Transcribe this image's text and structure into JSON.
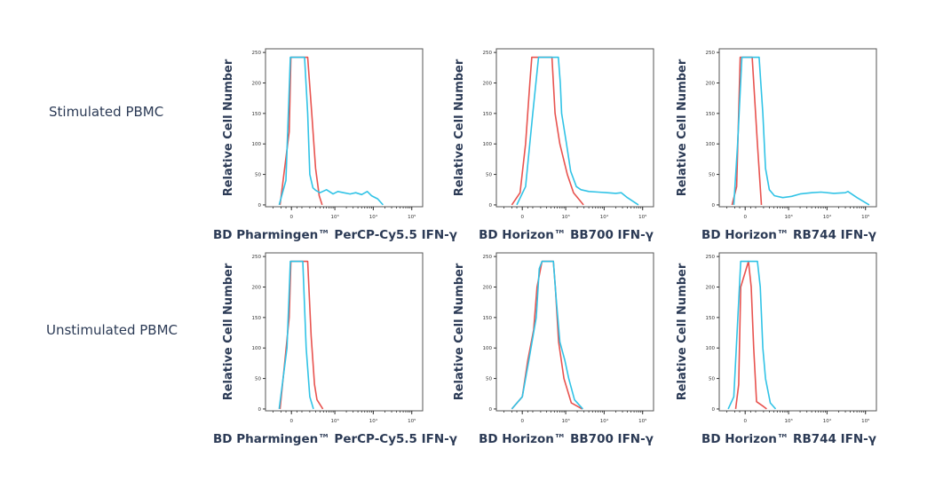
{
  "row_labels": [
    "Stimulated PBMC",
    "Unstimulated PBMC"
  ],
  "colors": {
    "red_series": "#e8534f",
    "blue_series": "#31c3e6",
    "text": "#2b3a55",
    "frame": "#555555"
  },
  "chart_data": [
    {
      "type": "line",
      "row": 0,
      "col": 0,
      "xlabel": "BD Pharmingen™ PerCP-Cy5.5 IFN-γ",
      "ylabel": "Relative Cell Number",
      "xscale": "biexponential",
      "xticks": [
        "0",
        "10³",
        "10⁴",
        "10⁵"
      ],
      "xtick_values": [
        0,
        1000,
        10000,
        100000
      ],
      "yticks": [
        "0",
        "50",
        "100",
        "150",
        "200",
        "250"
      ],
      "ytick_values": [
        0,
        50,
        100,
        150,
        200,
        250
      ],
      "ylim": [
        -3,
        256
      ],
      "grid": false,
      "series": [
        {
          "color": "#e8534f",
          "points": [
            [
              -110,
              0
            ],
            [
              -20,
              120
            ],
            [
              -5,
              242
            ],
            [
              170,
              242
            ],
            [
              230,
              150
            ],
            [
              300,
              60
            ],
            [
              380,
              15
            ],
            [
              460,
              0
            ]
          ]
        },
        {
          "color": "#31c3e6",
          "points": [
            [
              -120,
              0
            ],
            [
              -50,
              40
            ],
            [
              -10,
              242
            ],
            [
              130,
              242
            ],
            [
              170,
              150
            ],
            [
              200,
              50
            ],
            [
              250,
              28
            ],
            [
              300,
              24
            ],
            [
              400,
              20
            ],
            [
              600,
              25
            ],
            [
              900,
              18
            ],
            [
              1200,
              22
            ],
            [
              1700,
              20
            ],
            [
              2500,
              18
            ],
            [
              3500,
              20
            ],
            [
              5000,
              17
            ],
            [
              7000,
              22
            ],
            [
              9000,
              15
            ],
            [
              13000,
              10
            ],
            [
              18000,
              0
            ]
          ]
        }
      ]
    },
    {
      "type": "line",
      "row": 0,
      "col": 1,
      "xlabel": "BD Horizon™ BB700 IFN-γ",
      "ylabel": "Relative Cell Number",
      "xscale": "biexponential",
      "xticks": [
        "0",
        "10³",
        "10⁴",
        "10⁵"
      ],
      "xtick_values": [
        0,
        1000,
        10000,
        100000
      ],
      "yticks": [
        "0",
        "50",
        "100",
        "150",
        "200",
        "250"
      ],
      "ytick_values": [
        0,
        50,
        100,
        150,
        200,
        250
      ],
      "ylim": [
        -3,
        256
      ],
      "grid": false,
      "series": [
        {
          "color": "#e8534f",
          "points": [
            [
              -100,
              0
            ],
            [
              -20,
              20
            ],
            [
              30,
              100
            ],
            [
              70,
              200
            ],
            [
              90,
              242
            ],
            [
              430,
              242
            ],
            [
              520,
              150
            ],
            [
              700,
              100
            ],
            [
              1100,
              50
            ],
            [
              1600,
              20
            ],
            [
              2900,
              0
            ]
          ]
        },
        {
          "color": "#31c3e6",
          "points": [
            [
              -50,
              0
            ],
            [
              30,
              30
            ],
            [
              100,
              150
            ],
            [
              170,
              242
            ],
            [
              640,
              242
            ],
            [
              720,
              200
            ],
            [
              780,
              150
            ],
            [
              1050,
              100
            ],
            [
              1350,
              55
            ],
            [
              1900,
              30
            ],
            [
              2500,
              25
            ],
            [
              4000,
              22
            ],
            [
              7000,
              21
            ],
            [
              12000,
              20
            ],
            [
              20000,
              19
            ],
            [
              28000,
              20
            ],
            [
              40000,
              12
            ],
            [
              78000,
              0
            ]
          ]
        }
      ]
    },
    {
      "type": "line",
      "row": 0,
      "col": 2,
      "xlabel": "BD Horizon™ RB744 IFN-γ",
      "ylabel": "Relative Cell Number",
      "xscale": "biexponential",
      "xticks": [
        "0",
        "10³",
        "10⁴",
        "10⁵"
      ],
      "xtick_values": [
        0,
        1000,
        10000,
        100000
      ],
      "yticks": [
        "0",
        "50",
        "100",
        "150",
        "200",
        "250"
      ],
      "ytick_values": [
        0,
        50,
        100,
        150,
        200,
        250
      ],
      "ylim": [
        -3,
        256
      ],
      "grid": false,
      "series": [
        {
          "color": "#e8534f",
          "points": [
            [
              -130,
              0
            ],
            [
              -80,
              30
            ],
            [
              -45,
              242
            ],
            [
              65,
              242
            ],
            [
              120,
              100
            ],
            [
              170,
              0
            ]
          ]
        },
        {
          "color": "#31c3e6",
          "points": [
            [
              -110,
              0
            ],
            [
              -70,
              100
            ],
            [
              -30,
              242
            ],
            [
              140,
              242
            ],
            [
              190,
              150
            ],
            [
              230,
              60
            ],
            [
              300,
              25
            ],
            [
              420,
              15
            ],
            [
              700,
              12
            ],
            [
              1200,
              14
            ],
            [
              2000,
              18
            ],
            [
              4000,
              20
            ],
            [
              7000,
              21
            ],
            [
              15000,
              19
            ],
            [
              30000,
              20
            ],
            [
              35000,
              22
            ],
            [
              60000,
              12
            ],
            [
              125000,
              0
            ]
          ]
        }
      ]
    },
    {
      "type": "line",
      "row": 1,
      "col": 0,
      "xlabel": "BD Pharmingen™ PerCP-Cy5.5 IFN-γ",
      "ylabel": "Relative Cell Number",
      "xscale": "biexponential",
      "xticks": [
        "0",
        "10³",
        "10⁴",
        "10⁵"
      ],
      "xtick_values": [
        0,
        1000,
        10000,
        100000
      ],
      "yticks": [
        "0",
        "50",
        "100",
        "150",
        "200",
        "250"
      ],
      "ytick_values": [
        0,
        50,
        100,
        150,
        200,
        250
      ],
      "ylim": [
        -3,
        256
      ],
      "grid": false,
      "series": [
        {
          "color": "#e8534f",
          "points": [
            [
              -110,
              0
            ],
            [
              -20,
              150
            ],
            [
              -5,
              242
            ],
            [
              170,
              242
            ],
            [
              220,
              120
            ],
            [
              280,
              40
            ],
            [
              330,
              15
            ],
            [
              480,
              0
            ]
          ]
        },
        {
          "color": "#31c3e6",
          "points": [
            [
              -120,
              0
            ],
            [
              -40,
              100
            ],
            [
              -10,
              242
            ],
            [
              110,
              242
            ],
            [
              150,
              100
            ],
            [
              200,
              20
            ],
            [
              260,
              0
            ]
          ]
        }
      ]
    },
    {
      "type": "line",
      "row": 1,
      "col": 1,
      "xlabel": "BD Horizon™ BB700 IFN-γ",
      "ylabel": "Relative Cell Number",
      "xscale": "biexponential",
      "xticks": [
        "0",
        "10³",
        "10⁴",
        "10⁵"
      ],
      "xtick_values": [
        0,
        1000,
        10000,
        100000
      ],
      "yticks": [
        "0",
        "50",
        "100",
        "150",
        "200",
        "250"
      ],
      "ytick_values": [
        0,
        50,
        100,
        150,
        200,
        250
      ],
      "ylim": [
        -3,
        256
      ],
      "grid": false,
      "series": [
        {
          "color": "#e8534f",
          "points": [
            [
              -100,
              0
            ],
            [
              0,
              20
            ],
            [
              50,
              80
            ],
            [
              110,
              130
            ],
            [
              150,
              200
            ],
            [
              220,
              242
            ],
            [
              470,
              242
            ],
            [
              530,
              200
            ],
            [
              650,
              110
            ],
            [
              900,
              50
            ],
            [
              1400,
              10
            ],
            [
              2700,
              0
            ]
          ]
        },
        {
          "color": "#31c3e6",
          "points": [
            [
              -100,
              0
            ],
            [
              0,
              20
            ],
            [
              60,
              80
            ],
            [
              140,
              150
            ],
            [
              180,
              230
            ],
            [
              220,
              242
            ],
            [
              470,
              242
            ],
            [
              560,
              180
            ],
            [
              700,
              110
            ],
            [
              950,
              80
            ],
            [
              1200,
              50
            ],
            [
              1700,
              15
            ],
            [
              2800,
              0
            ]
          ]
        }
      ]
    },
    {
      "type": "line",
      "row": 1,
      "col": 2,
      "xlabel": "BD Horizon™ RB744 IFN-γ",
      "ylabel": "Relative Cell Number",
      "xscale": "biexponential",
      "xticks": [
        "0",
        "10³",
        "10⁴",
        "10⁵"
      ],
      "xtick_values": [
        0,
        1000,
        10000,
        100000
      ],
      "yticks": [
        "0",
        "50",
        "100",
        "150",
        "200",
        "250"
      ],
      "ytick_values": [
        0,
        50,
        100,
        150,
        200,
        250
      ],
      "ylim": [
        -3,
        256
      ],
      "grid": false,
      "series": [
        {
          "color": "#e8534f",
          "points": [
            [
              -90,
              0
            ],
            [
              -60,
              40
            ],
            [
              -40,
              200
            ],
            [
              30,
              242
            ],
            [
              55,
              200
            ],
            [
              80,
              100
            ],
            [
              110,
              12
            ],
            [
              200,
              4
            ],
            [
              250,
              0
            ]
          ]
        },
        {
          "color": "#31c3e6",
          "points": [
            [
              -180,
              0
            ],
            [
              -110,
              20
            ],
            [
              -40,
              242
            ],
            [
              120,
              242
            ],
            [
              155,
              200
            ],
            [
              190,
              100
            ],
            [
              230,
              50
            ],
            [
              320,
              10
            ],
            [
              450,
              0
            ]
          ]
        }
      ]
    }
  ]
}
